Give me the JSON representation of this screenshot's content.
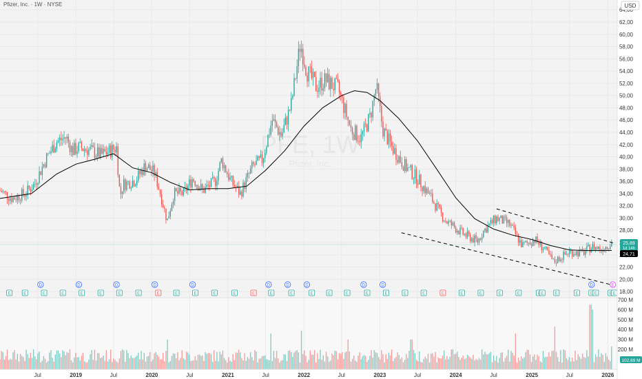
{
  "header": {
    "symbol": "Pfizer, Inc. · 1W · NYSE"
  },
  "watermark": {
    "ticker": "PFE, 1W",
    "name": "Pfizer, Inc."
  },
  "currency": "USD",
  "price_badges": {
    "last": "25,89",
    "countdown": "1d 14h",
    "ma": "24,71",
    "volume": "102,69 M"
  },
  "colors": {
    "up": "#26a69a",
    "down": "#ef5350",
    "ma": "#000000",
    "dividend": "#2962ff",
    "earnings": "#26a69a",
    "earnings_miss": "#ef5350",
    "future_event": "#e040fb",
    "channel": "#000000",
    "badge_last": "#26a69a",
    "badge_ma": "#000000",
    "badge_volume": "#26a69a"
  },
  "chart_data": {
    "type": "candlestick",
    "title": "Pfizer, Inc. · 1W · NYSE",
    "timeframe": "1W",
    "x_tick_labels": [
      "Jul",
      "2019",
      "Jul",
      "2020",
      "Jul",
      "2021",
      "Jul",
      "2022",
      "Jul",
      "2023",
      "Jul",
      "2024",
      "Jul",
      "2025",
      "Jul",
      "2026"
    ],
    "x_tick_dates": [
      "2018-07-01",
      "2019-01-01",
      "2019-07-01",
      "2020-01-01",
      "2020-07-01",
      "2021-01-01",
      "2021-07-01",
      "2022-01-01",
      "2022-07-01",
      "2023-01-01",
      "2023-07-01",
      "2024-01-01",
      "2024-07-01",
      "2025-01-01",
      "2025-07-01",
      "2026-01-01"
    ],
    "y_tick_labels": [
      "64,00",
      "62,00",
      "60,00",
      "58,00",
      "56,00",
      "54,00",
      "52,00",
      "50,00",
      "48,00",
      "46,00",
      "44,00",
      "42,00",
      "40,00",
      "38,00",
      "36,00",
      "34,00",
      "32,00",
      "30,00",
      "28,00",
      "26,00",
      "24,00",
      "22,00",
      "20,00",
      "18,00"
    ],
    "y_range": [
      17,
      65.6
    ],
    "x_range": [
      "2018-01-01",
      "2026-02-15"
    ],
    "price_path": [
      [
        "2018-01-01",
        34.5
      ],
      [
        "2018-03-01",
        33.2
      ],
      [
        "2018-05-01",
        34.0
      ],
      [
        "2018-06-15",
        35.5
      ],
      [
        "2018-08-15",
        40.0
      ],
      [
        "2018-10-01",
        42.5
      ],
      [
        "2018-11-15",
        43.2
      ],
      [
        "2018-12-15",
        41.0
      ],
      [
        "2019-01-15",
        41.5
      ],
      [
        "2019-03-01",
        41.2
      ],
      [
        "2019-05-01",
        40.3
      ],
      [
        "2019-06-15",
        41.0
      ],
      [
        "2019-07-15",
        41.5
      ],
      [
        "2019-08-01",
        33.5
      ],
      [
        "2019-08-15",
        35.5
      ],
      [
        "2019-10-15",
        36.2
      ],
      [
        "2019-12-01",
        38.6
      ],
      [
        "2020-01-15",
        37.3
      ],
      [
        "2020-02-15",
        33.5
      ],
      [
        "2020-03-15",
        29.5
      ],
      [
        "2020-04-15",
        34.0
      ],
      [
        "2020-06-01",
        34.0
      ],
      [
        "2020-07-15",
        36.5
      ],
      [
        "2020-09-01",
        34.5
      ],
      [
        "2020-11-01",
        36.0
      ],
      [
        "2020-12-01",
        39.5
      ],
      [
        "2021-01-15",
        36.0
      ],
      [
        "2021-03-01",
        34.0
      ],
      [
        "2021-05-01",
        38.5
      ],
      [
        "2021-06-15",
        39.5
      ],
      [
        "2021-08-01",
        46.0
      ],
      [
        "2021-09-15",
        43.5
      ],
      [
        "2021-11-01",
        48.5
      ],
      [
        "2021-12-15",
        58.5
      ],
      [
        "2022-01-15",
        54.0
      ],
      [
        "2022-03-01",
        51.5
      ],
      [
        "2022-04-15",
        52.5
      ],
      [
        "2022-06-15",
        51.0
      ],
      [
        "2022-08-15",
        44.5
      ],
      [
        "2022-10-01",
        43.0
      ],
      [
        "2022-11-15",
        46.5
      ],
      [
        "2022-12-15",
        51.5
      ],
      [
        "2023-01-15",
        44.5
      ],
      [
        "2023-03-01",
        41.5
      ],
      [
        "2023-05-01",
        38.5
      ],
      [
        "2023-07-01",
        36.5
      ],
      [
        "2023-09-01",
        33.5
      ],
      [
        "2023-10-15",
        31.0
      ],
      [
        "2023-11-15",
        29.5
      ],
      [
        "2023-12-15",
        28.8
      ],
      [
        "2024-02-01",
        27.5
      ],
      [
        "2024-04-15",
        26.2
      ],
      [
        "2024-05-15",
        28.0
      ],
      [
        "2024-07-15",
        30.0
      ],
      [
        "2024-09-15",
        29.0
      ],
      [
        "2024-11-15",
        25.5
      ],
      [
        "2025-01-15",
        26.5
      ],
      [
        "2025-03-01",
        25.0
      ],
      [
        "2025-04-15",
        22.8
      ],
      [
        "2025-05-15",
        23.5
      ],
      [
        "2025-07-01",
        24.5
      ],
      [
        "2025-09-01",
        24.3
      ],
      [
        "2025-10-15",
        25.3
      ],
      [
        "2025-12-01",
        25.0
      ],
      [
        "2026-01-20",
        25.89
      ]
    ],
    "moving_average": [
      [
        "2018-01-01",
        33.2
      ],
      [
        "2018-06-01",
        34.0
      ],
      [
        "2018-10-01",
        37.2
      ],
      [
        "2019-01-01",
        38.8
      ],
      [
        "2019-04-01",
        39.6
      ],
      [
        "2019-07-01",
        40.5
      ],
      [
        "2019-10-01",
        38.2
      ],
      [
        "2020-01-01",
        37.4
      ],
      [
        "2020-04-01",
        35.8
      ],
      [
        "2020-07-01",
        34.6
      ],
      [
        "2020-10-01",
        34.8
      ],
      [
        "2021-01-01",
        34.8
      ],
      [
        "2021-04-01",
        35.2
      ],
      [
        "2021-07-01",
        37.8
      ],
      [
        "2021-10-01",
        41.0
      ],
      [
        "2022-01-01",
        45.0
      ],
      [
        "2022-04-01",
        48.0
      ],
      [
        "2022-07-01",
        50.0
      ],
      [
        "2022-09-01",
        50.8
      ],
      [
        "2022-11-01",
        50.5
      ],
      [
        "2023-01-01",
        49.2
      ],
      [
        "2023-04-01",
        46.3
      ],
      [
        "2023-07-01",
        42.6
      ],
      [
        "2023-10-01",
        38.0
      ],
      [
        "2024-01-01",
        33.3
      ],
      [
        "2024-04-01",
        29.9
      ],
      [
        "2024-07-01",
        28.2
      ],
      [
        "2024-10-01",
        27.2
      ],
      [
        "2025-01-01",
        26.5
      ],
      [
        "2025-04-01",
        25.5
      ],
      [
        "2025-07-01",
        24.8
      ],
      [
        "2025-10-01",
        24.7
      ],
      [
        "2026-01-20",
        24.71
      ]
    ],
    "channel_lines": [
      {
        "from": [
          "2023-04-15",
          27.6
        ],
        "to": [
          "2026-01-31",
          19.0
        ]
      },
      {
        "from": [
          "2024-07-15",
          31.5
        ],
        "to": [
          "2026-01-31",
          25.9
        ]
      }
    ],
    "events": {
      "dividends": [
        "2018-07-15",
        "2019-01-15",
        "2019-07-15",
        "2020-01-15",
        "2020-07-15",
        "2021-07-15",
        "2021-10-15",
        "2022-01-15",
        "2022-10-15",
        "2023-01-15",
        "2025-10-15"
      ],
      "earnings": [
        "2018-02-15",
        "2018-05-01",
        "2018-08-01",
        "2018-10-30",
        "2019-01-29",
        "2019-04-30",
        "2019-07-29",
        "2019-10-29",
        "2020-02-01",
        "2020-04-28",
        "2020-07-28",
        "2020-10-28",
        "2021-02-02",
        "2021-05-04",
        "2021-07-28",
        "2021-11-02",
        "2022-02-08",
        "2022-05-03",
        "2022-07-28",
        "2022-11-01",
        "2023-01-31",
        "2023-05-02",
        "2023-07-31",
        "2023-10-31",
        "2024-01-30",
        "2024-04-30",
        "2024-07-30",
        "2024-10-29",
        "2025-02-04",
        "2025-02-20",
        "2025-04-29",
        "2025-08-05",
        "2025-10-15",
        "2025-11-04",
        "2026-01-15",
        "2026-02-01"
      ],
      "earnings_miss": [
        "2020-02-01",
        "2021-05-04",
        "2023-10-31"
      ],
      "upcoming": [
        "2026-01-25"
      ]
    },
    "volume": {
      "y_tick_labels": [
        "700 M",
        "600 M",
        "500 M",
        "400 M",
        "300 M",
        "200 M"
      ],
      "y_range": [
        0,
        720
      ],
      "unit": "M",
      "typical": 150,
      "spikes": [
        [
          "2020-03-15",
          300
        ],
        [
          "2021-07-25",
          360
        ],
        [
          "2021-12-20",
          390
        ],
        [
          "2022-08-01",
          300
        ],
        [
          "2023-06-01",
          300
        ],
        [
          "2024-10-15",
          360
        ],
        [
          "2025-04-20",
          430
        ],
        [
          "2025-10-10",
          650
        ],
        [
          "2025-10-20",
          600
        ],
        [
          "2026-01-20",
          230
        ]
      ]
    },
    "last_price": 25.89,
    "ma_value": 24.71,
    "last_volume": 102.69
  }
}
